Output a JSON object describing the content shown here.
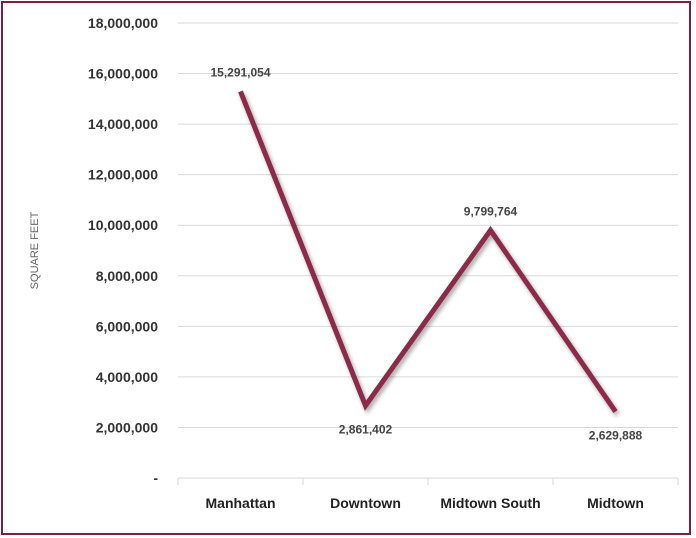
{
  "chart_data": {
    "type": "line",
    "categories": [
      "Manhattan",
      "Downtown",
      "Midtown South",
      "Midtown"
    ],
    "series": [
      {
        "values": [
          15291054,
          2861402,
          9799764,
          2629888
        ],
        "data_labels": [
          "15,291,054",
          "2,861,402",
          "9,799,764",
          "2,629,888"
        ]
      }
    ],
    "ylabel": "SQUARE FEET",
    "xlabel": "",
    "title": "",
    "ylim": [
      0,
      18000000
    ],
    "yticks": [
      0,
      2000000,
      4000000,
      6000000,
      8000000,
      10000000,
      12000000,
      14000000,
      16000000,
      18000000
    ],
    "ytick_labels": [
      "-",
      "2,000,000",
      "4,000,000",
      "6,000,000",
      "8,000,000",
      "10,000,000",
      "12,000,000",
      "14,000,000",
      "16,000,000",
      "18,000,000"
    ],
    "grid": true,
    "legend": "none"
  },
  "colors": {
    "line": "#8b2a4a",
    "frame": "#7b1f3f",
    "grid": "#d9d9d9"
  }
}
